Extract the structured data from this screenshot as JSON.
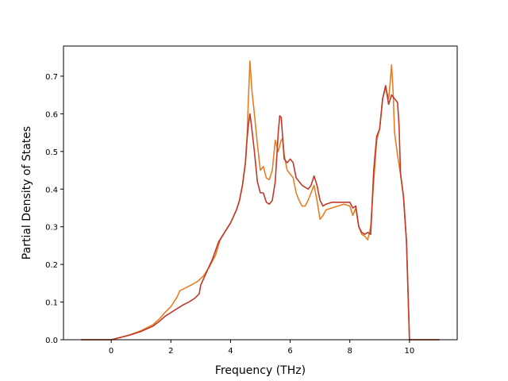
{
  "chart_data": {
    "type": "line",
    "title": "",
    "xlabel": "Frequency (THz)",
    "ylabel": "Partial Density of States",
    "xlim": [
      -1.6,
      11.6
    ],
    "ylim": [
      0,
      0.78
    ],
    "xticks": [
      0,
      2,
      4,
      6,
      8,
      10
    ],
    "yticks": [
      0.0,
      0.1,
      0.2,
      0.3,
      0.4,
      0.5,
      0.6,
      0.7
    ],
    "xtick_labels": [
      "0",
      "2",
      "4",
      "6",
      "8",
      "10"
    ],
    "ytick_labels": [
      "0.0",
      "0.1",
      "0.2",
      "0.3",
      "0.4",
      "0.5",
      "0.6",
      "0.7"
    ],
    "grid": false,
    "legend": "none",
    "series": [
      {
        "color": "#e67e22",
        "points": [
          [
            -1.0,
            0.0
          ],
          [
            0.0,
            0.0
          ],
          [
            0.2,
            0.004
          ],
          [
            0.6,
            0.012
          ],
          [
            1.0,
            0.024
          ],
          [
            1.4,
            0.04
          ],
          [
            1.6,
            0.054
          ],
          [
            1.8,
            0.072
          ],
          [
            2.0,
            0.088
          ],
          [
            2.1,
            0.1
          ],
          [
            2.2,
            0.112
          ],
          [
            2.3,
            0.13
          ],
          [
            2.5,
            0.138
          ],
          [
            2.7,
            0.146
          ],
          [
            2.9,
            0.155
          ],
          [
            3.1,
            0.17
          ],
          [
            3.3,
            0.195
          ],
          [
            3.5,
            0.225
          ],
          [
            3.65,
            0.265
          ],
          [
            3.8,
            0.285
          ],
          [
            4.0,
            0.31
          ],
          [
            4.2,
            0.345
          ],
          [
            4.3,
            0.37
          ],
          [
            4.4,
            0.41
          ],
          [
            4.5,
            0.47
          ],
          [
            4.55,
            0.53
          ],
          [
            4.6,
            0.64
          ],
          [
            4.65,
            0.74
          ],
          [
            4.72,
            0.66
          ],
          [
            4.8,
            0.6
          ],
          [
            4.9,
            0.52
          ],
          [
            5.0,
            0.45
          ],
          [
            5.1,
            0.46
          ],
          [
            5.2,
            0.43
          ],
          [
            5.3,
            0.425
          ],
          [
            5.4,
            0.45
          ],
          [
            5.5,
            0.53
          ],
          [
            5.6,
            0.5
          ],
          [
            5.7,
            0.53
          ],
          [
            5.75,
            0.535
          ],
          [
            5.8,
            0.49
          ],
          [
            5.9,
            0.45
          ],
          [
            6.0,
            0.44
          ],
          [
            6.1,
            0.43
          ],
          [
            6.2,
            0.39
          ],
          [
            6.3,
            0.37
          ],
          [
            6.4,
            0.355
          ],
          [
            6.5,
            0.355
          ],
          [
            6.6,
            0.37
          ],
          [
            6.7,
            0.39
          ],
          [
            6.8,
            0.41
          ],
          [
            6.9,
            0.37
          ],
          [
            7.0,
            0.32
          ],
          [
            7.1,
            0.33
          ],
          [
            7.2,
            0.345
          ],
          [
            7.4,
            0.35
          ],
          [
            7.6,
            0.355
          ],
          [
            7.8,
            0.36
          ],
          [
            8.0,
            0.355
          ],
          [
            8.1,
            0.33
          ],
          [
            8.2,
            0.35
          ],
          [
            8.3,
            0.3
          ],
          [
            8.4,
            0.28
          ],
          [
            8.5,
            0.275
          ],
          [
            8.6,
            0.265
          ],
          [
            8.7,
            0.3
          ],
          [
            8.8,
            0.42
          ],
          [
            8.9,
            0.53
          ],
          [
            9.0,
            0.56
          ],
          [
            9.1,
            0.64
          ],
          [
            9.2,
            0.67
          ],
          [
            9.3,
            0.64
          ],
          [
            9.35,
            0.68
          ],
          [
            9.4,
            0.73
          ],
          [
            9.45,
            0.66
          ],
          [
            9.5,
            0.55
          ],
          [
            9.6,
            0.49
          ],
          [
            9.7,
            0.44
          ],
          [
            9.8,
            0.38
          ],
          [
            9.9,
            0.26
          ],
          [
            10.0,
            0.0
          ],
          [
            11.0,
            0.0
          ]
        ]
      },
      {
        "color": "#c0392b",
        "points": [
          [
            -1.0,
            0.0
          ],
          [
            0.0,
            0.0
          ],
          [
            0.2,
            0.004
          ],
          [
            0.6,
            0.012
          ],
          [
            1.0,
            0.022
          ],
          [
            1.4,
            0.036
          ],
          [
            1.6,
            0.048
          ],
          [
            1.8,
            0.062
          ],
          [
            2.0,
            0.072
          ],
          [
            2.2,
            0.082
          ],
          [
            2.4,
            0.092
          ],
          [
            2.6,
            0.1
          ],
          [
            2.8,
            0.11
          ],
          [
            2.95,
            0.122
          ],
          [
            3.0,
            0.145
          ],
          [
            3.2,
            0.18
          ],
          [
            3.4,
            0.215
          ],
          [
            3.6,
            0.26
          ],
          [
            3.8,
            0.285
          ],
          [
            4.0,
            0.31
          ],
          [
            4.2,
            0.345
          ],
          [
            4.3,
            0.37
          ],
          [
            4.4,
            0.41
          ],
          [
            4.5,
            0.47
          ],
          [
            4.55,
            0.53
          ],
          [
            4.6,
            0.57
          ],
          [
            4.65,
            0.6
          ],
          [
            4.7,
            0.57
          ],
          [
            4.8,
            0.5
          ],
          [
            4.9,
            0.42
          ],
          [
            5.0,
            0.39
          ],
          [
            5.1,
            0.39
          ],
          [
            5.2,
            0.365
          ],
          [
            5.3,
            0.36
          ],
          [
            5.4,
            0.37
          ],
          [
            5.5,
            0.42
          ],
          [
            5.6,
            0.55
          ],
          [
            5.65,
            0.595
          ],
          [
            5.7,
            0.59
          ],
          [
            5.8,
            0.48
          ],
          [
            5.9,
            0.47
          ],
          [
            6.0,
            0.48
          ],
          [
            6.1,
            0.47
          ],
          [
            6.2,
            0.43
          ],
          [
            6.4,
            0.41
          ],
          [
            6.6,
            0.4
          ],
          [
            6.7,
            0.41
          ],
          [
            6.8,
            0.435
          ],
          [
            6.9,
            0.41
          ],
          [
            7.0,
            0.37
          ],
          [
            7.1,
            0.355
          ],
          [
            7.2,
            0.36
          ],
          [
            7.4,
            0.365
          ],
          [
            7.6,
            0.365
          ],
          [
            7.8,
            0.365
          ],
          [
            8.0,
            0.365
          ],
          [
            8.1,
            0.35
          ],
          [
            8.2,
            0.355
          ],
          [
            8.3,
            0.3
          ],
          [
            8.4,
            0.285
          ],
          [
            8.5,
            0.28
          ],
          [
            8.6,
            0.285
          ],
          [
            8.7,
            0.28
          ],
          [
            8.8,
            0.45
          ],
          [
            8.9,
            0.54
          ],
          [
            9.0,
            0.56
          ],
          [
            9.1,
            0.64
          ],
          [
            9.2,
            0.675
          ],
          [
            9.3,
            0.625
          ],
          [
            9.4,
            0.65
          ],
          [
            9.5,
            0.64
          ],
          [
            9.6,
            0.63
          ],
          [
            9.65,
            0.57
          ],
          [
            9.7,
            0.44
          ],
          [
            9.8,
            0.38
          ],
          [
            9.9,
            0.26
          ],
          [
            10.0,
            0.0
          ],
          [
            11.0,
            0.0
          ]
        ]
      }
    ]
  }
}
